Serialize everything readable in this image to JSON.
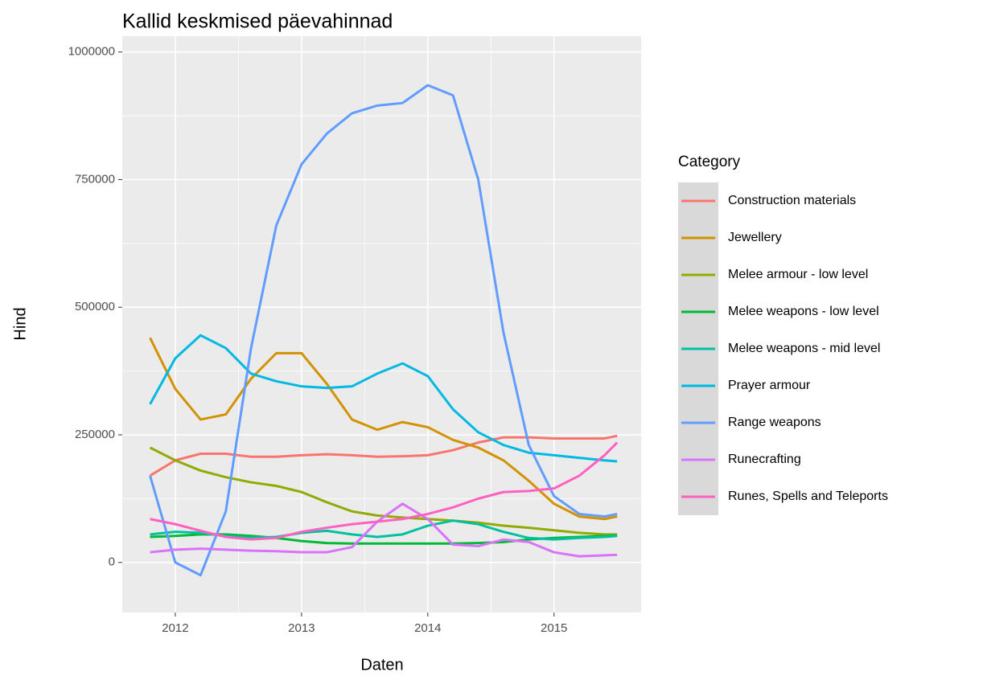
{
  "chart_data": {
    "type": "line",
    "title": "Kallid keskmised päevahinnad",
    "x_label": "Daten",
    "y_label": "Hind",
    "legend_title": "Category",
    "legend": "right",
    "grid": true,
    "x": [
      2011.8,
      2012.0,
      2012.2,
      2012.4,
      2012.6,
      2012.8,
      2013.0,
      2013.2,
      2013.4,
      2013.6,
      2013.8,
      2014.0,
      2014.2,
      2014.4,
      2014.6,
      2014.8,
      2015.0,
      2015.2,
      2015.4,
      2015.5
    ],
    "xlim": [
      2011.58,
      2015.69
    ],
    "xticks": [
      2012,
      2013,
      2014,
      2015
    ],
    "ylim": [
      -98000,
      1031000
    ],
    "yticks": [
      0,
      250000,
      500000,
      750000,
      1000000
    ],
    "series": [
      {
        "name": "Construction materials",
        "color": "#F8766D",
        "values": [
          170000,
          200000,
          213000,
          213000,
          207000,
          207000,
          210000,
          212000,
          210000,
          207000,
          208000,
          210000,
          220000,
          235000,
          245000,
          245000,
          243000,
          243000,
          243000,
          248000
        ]
      },
      {
        "name": "Jewellery",
        "color": "#D39200",
        "values": [
          440000,
          340000,
          280000,
          290000,
          360000,
          410000,
          410000,
          350000,
          280000,
          260000,
          275000,
          265000,
          240000,
          225000,
          200000,
          160000,
          115000,
          90000,
          85000,
          90000
        ]
      },
      {
        "name": "Melee armour - low level",
        "color": "#93AA00",
        "values": [
          225000,
          200000,
          180000,
          167000,
          157000,
          150000,
          138000,
          118000,
          100000,
          92000,
          88000,
          85000,
          82000,
          78000,
          72000,
          68000,
          63000,
          58000,
          55000,
          55000
        ]
      },
      {
        "name": "Melee weapons - low level",
        "color": "#00BA38",
        "values": [
          50000,
          52000,
          55000,
          55000,
          52000,
          48000,
          42000,
          38000,
          37000,
          37000,
          37000,
          37000,
          37000,
          38000,
          40000,
          45000,
          48000,
          50000,
          52000,
          53000
        ]
      },
      {
        "name": "Melee weapons - mid level",
        "color": "#00C19F",
        "values": [
          55000,
          60000,
          58000,
          52000,
          48000,
          50000,
          58000,
          62000,
          55000,
          50000,
          55000,
          72000,
          82000,
          75000,
          60000,
          48000,
          45000,
          48000,
          50000,
          52000
        ]
      },
      {
        "name": "Prayer armour",
        "color": "#00B9E3",
        "values": [
          310000,
          400000,
          445000,
          420000,
          370000,
          355000,
          345000,
          342000,
          345000,
          370000,
          390000,
          365000,
          300000,
          255000,
          230000,
          215000,
          210000,
          205000,
          200000,
          198000
        ]
      },
      {
        "name": "Range weapons",
        "color": "#619CFF",
        "values": [
          170000,
          0,
          -25000,
          100000,
          420000,
          660000,
          780000,
          840000,
          880000,
          895000,
          900000,
          935000,
          915000,
          750000,
          450000,
          230000,
          130000,
          95000,
          90000,
          95000
        ]
      },
      {
        "name": "Runecrafting",
        "color": "#DB72FB",
        "values": [
          20000,
          25000,
          27000,
          25000,
          23000,
          22000,
          20000,
          20000,
          30000,
          80000,
          115000,
          85000,
          35000,
          32000,
          45000,
          40000,
          20000,
          12000,
          14000,
          15000
        ]
      },
      {
        "name": "Runes, Spells and Teleports",
        "color": "#FF61C3",
        "values": [
          85000,
          75000,
          62000,
          50000,
          45000,
          48000,
          60000,
          68000,
          75000,
          80000,
          85000,
          95000,
          108000,
          125000,
          138000,
          140000,
          145000,
          170000,
          210000,
          235000
        ]
      }
    ]
  }
}
